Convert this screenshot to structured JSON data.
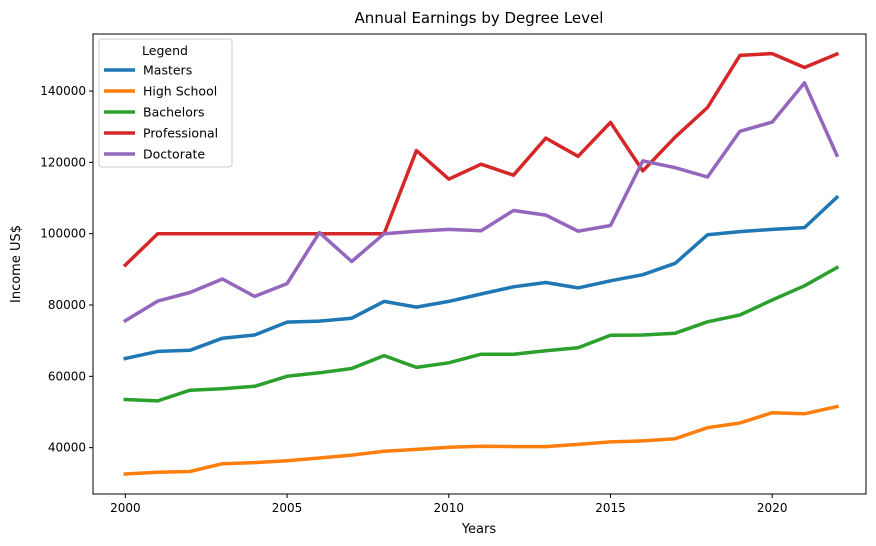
{
  "chart_data": {
    "type": "line",
    "title": "Annual Earnings by Degree Level",
    "xlabel": "Years",
    "ylabel": "Income US$",
    "xlim": [
      1999.0,
      2022.9
    ],
    "ylim": [
      27000,
      156000
    ],
    "x_ticks": [
      2000,
      2005,
      2010,
      2015,
      2020
    ],
    "y_ticks": [
      40000,
      60000,
      80000,
      100000,
      120000,
      140000
    ],
    "grid": false,
    "legend": {
      "title": "Legend",
      "position": "top-left"
    },
    "x": [
      2000,
      2001,
      2002,
      2003,
      2004,
      2005,
      2006,
      2007,
      2008,
      2009,
      2010,
      2011,
      2012,
      2013,
      2014,
      2015,
      2016,
      2017,
      2018,
      2019,
      2020,
      2021,
      2022
    ],
    "series": [
      {
        "name": "Masters",
        "color": "#1f77b4",
        "values": [
          65000,
          67000,
          67300,
          70700,
          71600,
          75200,
          75500,
          76300,
          81000,
          79400,
          81000,
          83100,
          85100,
          86300,
          84800,
          86800,
          88500,
          91700,
          99700,
          100600,
          101200,
          101700,
          110200
        ]
      },
      {
        "name": "High School",
        "color": "#ff7f0e",
        "values": [
          32600,
          33100,
          33300,
          35500,
          35800,
          36300,
          37100,
          37900,
          39000,
          39500,
          40100,
          40400,
          40300,
          40300,
          40900,
          41600,
          41900,
          42500,
          45600,
          46900,
          49800,
          49500,
          51500
        ]
      },
      {
        "name": "Bachelors",
        "color": "#2ca02c",
        "values": [
          53500,
          53100,
          56100,
          56500,
          57200,
          60000,
          61000,
          62200,
          65800,
          62500,
          63800,
          66200,
          66200,
          67200,
          68000,
          71500,
          71600,
          72100,
          75300,
          77200,
          81400,
          85400,
          90500
        ]
      },
      {
        "name": "Professional",
        "color": "#d62728",
        "values": [
          91200,
          100000,
          100000,
          100000,
          100000,
          100000,
          100000,
          100000,
          100000,
          123300,
          115300,
          119500,
          116400,
          126800,
          121700,
          131200,
          117600,
          127100,
          135400,
          150000,
          150500,
          146600,
          150400
        ]
      },
      {
        "name": "Doctorate",
        "color": "#9467bd",
        "values": [
          75600,
          81100,
          83500,
          87300,
          82400,
          86000,
          100300,
          92200,
          100000,
          100700,
          101200,
          100800,
          106500,
          105200,
          100700,
          102300,
          120400,
          118500,
          115900,
          128700,
          131300,
          142300,
          122000
        ]
      }
    ]
  }
}
